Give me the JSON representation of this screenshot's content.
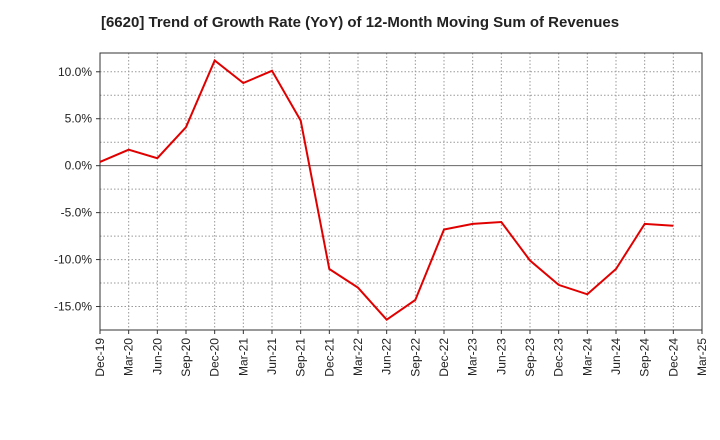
{
  "chart_data": {
    "type": "line",
    "title": "[6620]  Trend of Growth Rate (YoY) of 12-Month Moving Sum of Revenues",
    "xlabel": "",
    "ylabel": "",
    "x_ticks": [
      "Dec-19",
      "Mar-20",
      "Jun-20",
      "Sep-20",
      "Dec-20",
      "Mar-21",
      "Jun-21",
      "Sep-21",
      "Dec-21",
      "Mar-22",
      "Jun-22",
      "Sep-22",
      "Dec-22",
      "Mar-23",
      "Jun-23",
      "Sep-23",
      "Dec-23",
      "Mar-24",
      "Jun-24",
      "Sep-24",
      "Dec-24",
      "Mar-25"
    ],
    "y_ticks": [
      "10.0%",
      "5.0%",
      "0.0%",
      "-5.0%",
      "-10.0%",
      "-15.0%"
    ],
    "y_tick_values": [
      10,
      5,
      0,
      -5,
      -10,
      -15
    ],
    "ylim": [
      -17.5,
      12.0
    ],
    "grid": true,
    "zero_line": true,
    "series": [
      {
        "color": "#e00000",
        "x": [
          "Dec-19",
          "Mar-20",
          "Jun-20",
          "Sep-20",
          "Dec-20",
          "Mar-21",
          "Jun-21",
          "Sep-21",
          "Dec-21",
          "Mar-22",
          "Jun-22",
          "Sep-22",
          "Dec-22",
          "Mar-23",
          "Jun-23",
          "Sep-23",
          "Dec-23",
          "Mar-24",
          "Jun-24",
          "Sep-24",
          "Dec-24"
        ],
        "values": [
          0.4,
          1.7,
          0.8,
          4.1,
          11.2,
          8.8,
          10.1,
          4.8,
          -11.0,
          -13.0,
          -16.4,
          -14.3,
          -6.8,
          -6.2,
          -6.0,
          -10.1,
          -12.7,
          -13.7,
          -11.0,
          -6.2,
          -6.4
        ]
      }
    ]
  }
}
